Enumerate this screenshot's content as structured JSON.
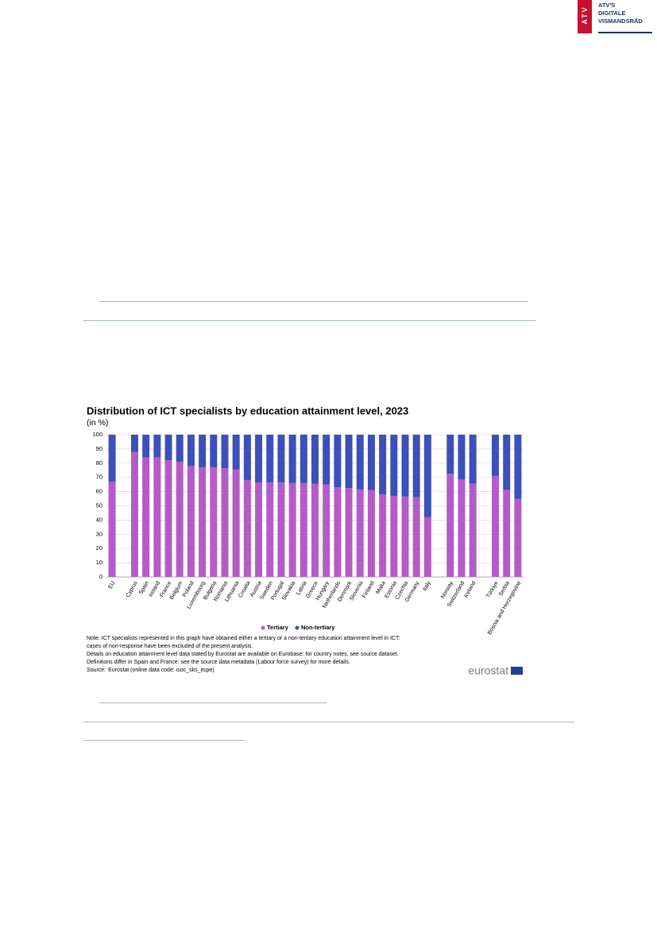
{
  "header": {
    "logo": "ATV",
    "org_lines": [
      "ATV'S",
      "DIGITALE",
      "VISMANDSRÅD"
    ]
  },
  "chart_data": {
    "type": "stacked_bar",
    "title": "Distribution of ICT specialists by education attainment level, 2023",
    "subtitle": "(in %)",
    "categories": [
      "EU",
      null,
      "Cyprus",
      "Spain",
      "Ireland",
      "France",
      "Belgium",
      "Poland",
      "Luxembourg",
      "Bulgaria",
      "Romania",
      "Lithuania",
      "Croatia",
      "Austria",
      "Sweden",
      "Portugal",
      "Slovakia",
      "Latvia",
      "Greece",
      "Hungary",
      "Netherlands",
      "Denmark",
      "Slovenia",
      "Finland",
      "Malta",
      "Estonia",
      "Czechia",
      "Germany",
      "Italy",
      null,
      "Norway",
      "Switzerland",
      "Iceland",
      null,
      "Türkiye",
      "Serbia",
      "Bosnia and Herzegovina"
    ],
    "series": [
      {
        "name": "Tertiary",
        "color": "#b55bc7",
        "values": [
          67,
          null,
          88,
          84,
          84,
          82,
          81,
          78,
          77,
          77,
          76.5,
          75.5,
          68,
          66.5,
          66.5,
          66.5,
          66,
          66,
          65.5,
          65,
          63,
          62.5,
          61.5,
          61,
          58,
          57,
          56.5,
          56,
          42,
          null,
          72.5,
          68.5,
          65.5,
          null,
          71,
          61,
          55
        ]
      },
      {
        "name": "Non-tertiary",
        "color": "#3b50b8",
        "values": [
          33,
          null,
          12,
          16,
          16,
          18,
          19,
          22,
          23,
          23,
          23.5,
          24.5,
          32,
          33.5,
          33.5,
          33.5,
          34,
          34,
          34.5,
          35,
          37,
          37.5,
          38.5,
          39,
          42,
          43,
          43.5,
          44,
          58,
          null,
          27.5,
          31.5,
          34.5,
          null,
          29,
          39,
          45
        ]
      }
    ],
    "ylim": [
      0,
      100
    ],
    "yticks": [
      0,
      10,
      20,
      30,
      40,
      50,
      60,
      70,
      80,
      90,
      100
    ],
    "grid": true,
    "notes": [
      "Note: ICT specialists represented in this graph have obtained either a tertiary or a non-tertiary education attainment level in ICT:",
      "cases of non-response have been excluded of the present analysis.",
      "Details on education attainment level data stated by Eurostat are available on Eurobase: for country notes, see source dataset.",
      "Definitions differ in Spain and France: see the source data metadata (Labour force survey) for more details."
    ],
    "source_label": "Source:",
    "source_text": "Eurostat (online data code: isoc_sks_itspe)",
    "brand": "eurostat"
  }
}
